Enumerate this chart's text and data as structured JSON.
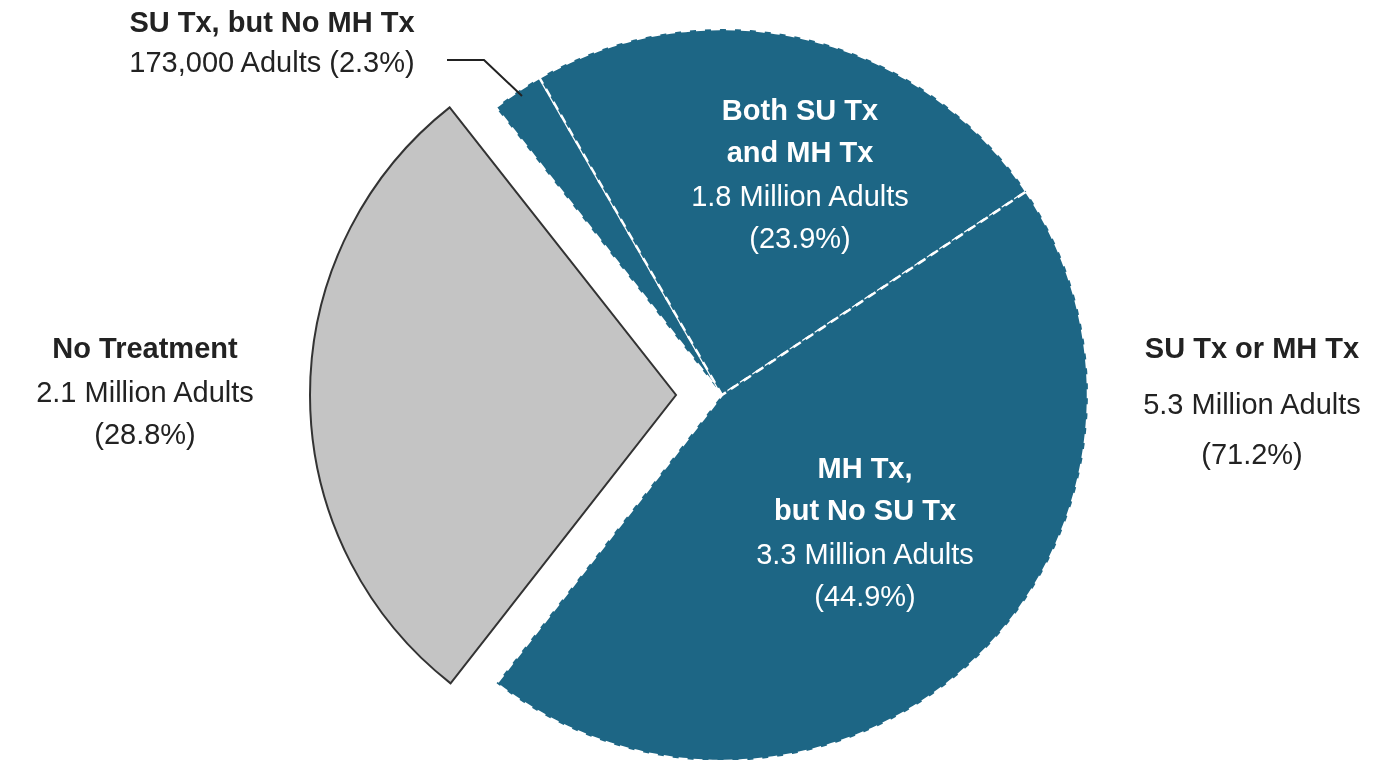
{
  "chart_data": {
    "type": "pie",
    "categories": [
      "SU Tx, but No MH Tx",
      "Both SU Tx\nand MH Tx",
      "MH Tx,\nbut No SU Tx",
      "No Treatment"
    ],
    "values": [
      2.3,
      23.9,
      44.9,
      28.8
    ],
    "colors": [
      "#1d6685",
      "#1d6685",
      "#1d6685",
      "#c4c4c4"
    ],
    "value_labels": [
      "173,000 Adults (2.3%)",
      "1.8 Million Adults\n(23.9%)",
      "3.3 Million Adults\n(44.9%)",
      "2.1 Million Adults\n(28.8%)"
    ],
    "annotations": [
      "SU Tx or MH Tx\n5.3 Million Adults\n(71.2%)"
    ]
  }
}
